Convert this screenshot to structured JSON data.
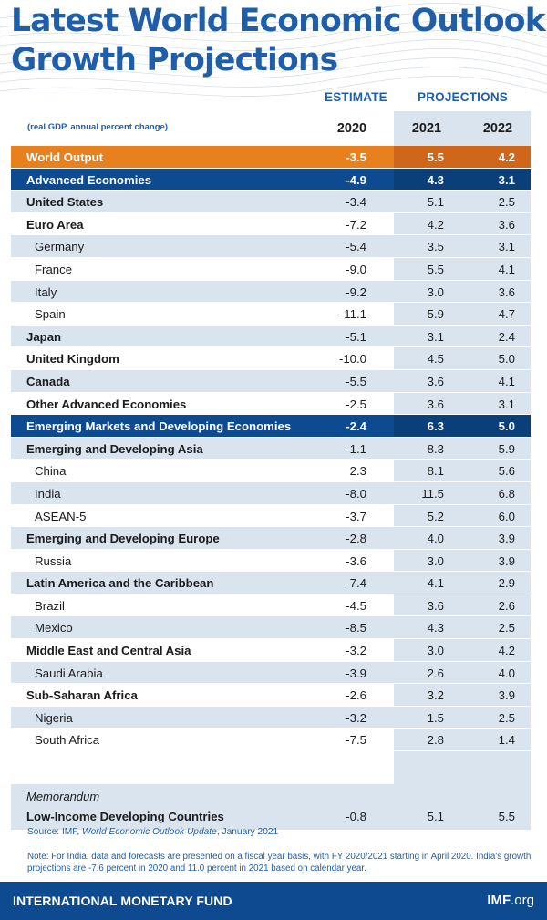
{
  "title": {
    "line1": "Latest World Economic Outlook",
    "line2": "Growth Projections"
  },
  "headers": {
    "estimate": "ESTIMATE",
    "projections": "PROJECTIONS",
    "unit_note": "(real GDP, annual percent change)",
    "y2020": "2020",
    "y2021": "2021",
    "y2022": "2022"
  },
  "rows": [
    {
      "label": "World Output",
      "v2020": "-3.5",
      "v2021": "5.5",
      "v2022": "4.2"
    },
    {
      "label": "Advanced Economies",
      "v2020": "-4.9",
      "v2021": "4.3",
      "v2022": "3.1"
    },
    {
      "label": "United States",
      "v2020": "-3.4",
      "v2021": "5.1",
      "v2022": "2.5"
    },
    {
      "label": "Euro Area",
      "v2020": "-7.2",
      "v2021": "4.2",
      "v2022": "3.6"
    },
    {
      "label": "Germany",
      "v2020": "-5.4",
      "v2021": "3.5",
      "v2022": "3.1"
    },
    {
      "label": "France",
      "v2020": "-9.0",
      "v2021": "5.5",
      "v2022": "4.1"
    },
    {
      "label": "Italy",
      "v2020": "-9.2",
      "v2021": "3.0",
      "v2022": "3.6"
    },
    {
      "label": "Spain",
      "v2020": "-11.1",
      "v2021": "5.9",
      "v2022": "4.7"
    },
    {
      "label": "Japan",
      "v2020": "-5.1",
      "v2021": "3.1",
      "v2022": "2.4"
    },
    {
      "label": "United Kingdom",
      "v2020": "-10.0",
      "v2021": "4.5",
      "v2022": "5.0"
    },
    {
      "label": "Canada",
      "v2020": "-5.5",
      "v2021": "3.6",
      "v2022": "4.1"
    },
    {
      "label": "Other Advanced Economies",
      "v2020": "-2.5",
      "v2021": "3.6",
      "v2022": "3.1"
    },
    {
      "label": "Emerging Markets and Developing Economies",
      "v2020": "-2.4",
      "v2021": "6.3",
      "v2022": "5.0"
    },
    {
      "label": "Emerging and Developing Asia",
      "v2020": "-1.1",
      "v2021": "8.3",
      "v2022": "5.9"
    },
    {
      "label": "China",
      "v2020": "2.3",
      "v2021": "8.1",
      "v2022": "5.6"
    },
    {
      "label": "India",
      "v2020": "-8.0",
      "v2021": "11.5",
      "v2022": "6.8"
    },
    {
      "label": "ASEAN-5",
      "v2020": "-3.7",
      "v2021": "5.2",
      "v2022": "6.0"
    },
    {
      "label": "Emerging and Developing Europe",
      "v2020": "-2.8",
      "v2021": "4.0",
      "v2022": "3.9"
    },
    {
      "label": "Russia",
      "v2020": "-3.6",
      "v2021": "3.0",
      "v2022": "3.9"
    },
    {
      "label": "Latin America and the Caribbean",
      "v2020": "-7.4",
      "v2021": "4.1",
      "v2022": "2.9"
    },
    {
      "label": "Brazil",
      "v2020": "-4.5",
      "v2021": "3.6",
      "v2022": "2.6"
    },
    {
      "label": "Mexico",
      "v2020": "-8.5",
      "v2021": "4.3",
      "v2022": "2.5"
    },
    {
      "label": "Middle East and Central Asia",
      "v2020": "-3.2",
      "v2021": "3.0",
      "v2022": "4.2"
    },
    {
      "label": "Saudi Arabia",
      "v2020": "-3.9",
      "v2021": "2.6",
      "v2022": "4.0"
    },
    {
      "label": "Sub-Saharan Africa",
      "v2020": "-2.6",
      "v2021": "3.2",
      "v2022": "3.9"
    },
    {
      "label": "Nigeria",
      "v2020": "-3.2",
      "v2021": "1.5",
      "v2022": "2.5"
    },
    {
      "label": "South Africa",
      "v2020": "-7.5",
      "v2021": "2.8",
      "v2022": "1.4"
    }
  ],
  "memo": {
    "heading": "Memorandum",
    "label": "Low-Income Developing Countries",
    "v2020": "-0.8",
    "v2021": "5.1",
    "v2022": "5.5"
  },
  "source": {
    "prefix": "Source: IMF, ",
    "publication": "World Economic Outlook Update",
    "suffix": ", January 2021"
  },
  "note": "Note: For India, data and forecasts are presented on a fiscal year basis, with FY 2020/2021 starting in April 2020. India's growth projections are -7.6 percent in 2020 and 11.0 percent in 2021 based on calendar year.",
  "footer": {
    "org": "INTERNATIONAL MONETARY FUND",
    "site_bold": "IMF",
    "site_rest": ".org"
  },
  "colors": {
    "brand_blue": "#1f5fa9",
    "dark_blue": "#0d4a8f",
    "orange": "#e8801d",
    "shade": "#d9e4ef"
  }
}
